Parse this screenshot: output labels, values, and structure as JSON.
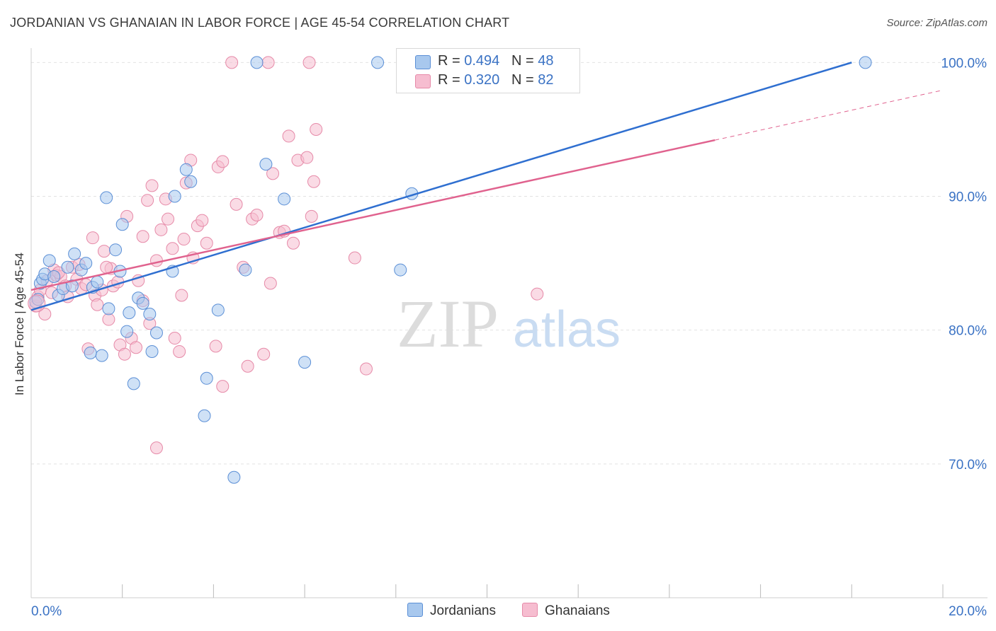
{
  "title": "JORDANIAN VS GHANAIAN IN LABOR FORCE | AGE 45-54 CORRELATION CHART",
  "source": "Source: ZipAtlas.com",
  "watermark": {
    "zip": "ZIP",
    "atlas": "atlas"
  },
  "legend": {
    "jordanians": {
      "r_label": "R = ",
      "r_value": "0.494",
      "n_label": "N = ",
      "n_value": "48"
    },
    "ghanaians": {
      "r_label": "R = ",
      "r_value": "0.320",
      "n_label": "N = ",
      "n_value": "82"
    }
  },
  "bottom_legend": {
    "jordanians": "Jordanians",
    "ghanaians": "Ghanaians"
  },
  "colors": {
    "jordanians_fill": "#a8c8ee",
    "jordanians_stroke": "#5b8fd6",
    "jordanians_line": "#2f6fd0",
    "ghanaians_fill": "#f6bdd0",
    "ghanaians_stroke": "#e68aa8",
    "ghanaians_line": "#e0628e",
    "axis_text": "#3a72c4",
    "grid": "#e2e2e2"
  },
  "chart_data": {
    "type": "scatter",
    "title": "JORDANIAN VS GHANAIAN IN LABOR FORCE | AGE 45-54 CORRELATION CHART",
    "xlabel": "",
    "ylabel": "In Labor Force | Age 45-54",
    "xlim": [
      0,
      20
    ],
    "ylim": [
      60,
      101.5
    ],
    "x_tick_labels": [
      {
        "value": 0,
        "label": "0.0%"
      },
      {
        "value": 20,
        "label": "20.0%"
      }
    ],
    "y_tick_labels": [
      {
        "value": 100,
        "label": "100.0%"
      },
      {
        "value": 90,
        "label": "90.0%"
      },
      {
        "value": 80,
        "label": "80.0%"
      },
      {
        "value": 70,
        "label": "70.0%"
      }
    ],
    "y_gridlines": [
      100,
      90,
      80,
      70
    ],
    "x_minor_ticks": [
      2,
      4,
      6,
      8,
      10,
      12,
      14,
      16,
      18,
      20
    ],
    "series": [
      {
        "name": "Jordanians",
        "r": 0.494,
        "n": 48,
        "trend": {
          "x0": 0,
          "y0": 81.5,
          "x1": 18,
          "y1": 100,
          "dash_to": 18
        },
        "points": [
          [
            0.1,
            82.1
          ],
          [
            0.15,
            82.3
          ],
          [
            0.2,
            83.5
          ],
          [
            0.25,
            83.8
          ],
          [
            0.3,
            84.2
          ],
          [
            0.4,
            85.2
          ],
          [
            0.5,
            84.0
          ],
          [
            0.6,
            82.6
          ],
          [
            0.7,
            83.1
          ],
          [
            0.8,
            84.7
          ],
          [
            0.9,
            83.3
          ],
          [
            0.95,
            85.7
          ],
          [
            1.1,
            84.5
          ],
          [
            1.2,
            85.0
          ],
          [
            1.35,
            83.2
          ],
          [
            1.45,
            83.6
          ],
          [
            1.55,
            78.1
          ],
          [
            1.65,
            89.9
          ],
          [
            1.7,
            81.6
          ],
          [
            1.85,
            86.0
          ],
          [
            1.95,
            84.4
          ],
          [
            2.0,
            87.9
          ],
          [
            2.1,
            79.9
          ],
          [
            2.15,
            81.3
          ],
          [
            2.25,
            76.0
          ],
          [
            2.35,
            82.4
          ],
          [
            2.45,
            82.0
          ],
          [
            2.6,
            81.2
          ],
          [
            2.65,
            78.4
          ],
          [
            2.75,
            79.8
          ],
          [
            3.1,
            84.4
          ],
          [
            3.15,
            90.0
          ],
          [
            3.4,
            92.0
          ],
          [
            3.5,
            91.1
          ],
          [
            3.85,
            76.4
          ],
          [
            3.8,
            73.6
          ],
          [
            4.1,
            81.5
          ],
          [
            4.45,
            69.0
          ],
          [
            4.7,
            84.5
          ],
          [
            4.95,
            100
          ],
          [
            5.15,
            92.4
          ],
          [
            5.55,
            89.8
          ],
          [
            6.0,
            77.6
          ],
          [
            7.6,
            100
          ],
          [
            8.1,
            84.5
          ],
          [
            8.35,
            90.2
          ],
          [
            18.3,
            100
          ],
          [
            1.3,
            78.3
          ]
        ]
      },
      {
        "name": "Ghanaians",
        "r": 0.32,
        "n": 82,
        "trend": {
          "x0": 0,
          "y0": 83.0,
          "x1": 15,
          "y1": 94.2,
          "dash_to": 20
        },
        "points": [
          [
            0.1,
            81.8
          ],
          [
            0.15,
            82.5
          ],
          [
            0.2,
            83.0
          ],
          [
            0.3,
            81.2
          ],
          [
            0.35,
            83.7
          ],
          [
            0.45,
            82.8
          ],
          [
            0.5,
            84.5
          ],
          [
            0.55,
            84.1
          ],
          [
            0.65,
            84.0
          ],
          [
            0.75,
            83.3
          ],
          [
            0.8,
            82.5
          ],
          [
            0.9,
            84.7
          ],
          [
            1.0,
            83.8
          ],
          [
            1.05,
            84.9
          ],
          [
            1.1,
            83.1
          ],
          [
            1.2,
            83.4
          ],
          [
            1.25,
            78.6
          ],
          [
            1.35,
            86.9
          ],
          [
            1.4,
            82.6
          ],
          [
            1.45,
            81.9
          ],
          [
            1.55,
            83.0
          ],
          [
            1.6,
            85.9
          ],
          [
            1.7,
            80.8
          ],
          [
            1.75,
            84.6
          ],
          [
            1.8,
            83.3
          ],
          [
            1.9,
            83.6
          ],
          [
            1.95,
            78.9
          ],
          [
            2.05,
            78.2
          ],
          [
            2.1,
            88.5
          ],
          [
            2.2,
            79.4
          ],
          [
            2.3,
            78.7
          ],
          [
            2.35,
            83.7
          ],
          [
            2.45,
            87.0
          ],
          [
            2.55,
            89.7
          ],
          [
            2.6,
            80.5
          ],
          [
            2.65,
            90.8
          ],
          [
            2.75,
            85.2
          ],
          [
            2.85,
            87.5
          ],
          [
            2.95,
            89.8
          ],
          [
            3.0,
            88.3
          ],
          [
            3.1,
            86.1
          ],
          [
            3.15,
            79.4
          ],
          [
            3.25,
            78.4
          ],
          [
            3.35,
            86.8
          ],
          [
            3.4,
            91.0
          ],
          [
            3.5,
            92.7
          ],
          [
            3.55,
            85.4
          ],
          [
            3.65,
            87.8
          ],
          [
            3.75,
            88.2
          ],
          [
            3.85,
            86.5
          ],
          [
            4.1,
            92.2
          ],
          [
            4.2,
            92.6
          ],
          [
            4.2,
            75.8
          ],
          [
            4.5,
            89.4
          ],
          [
            4.65,
            84.7
          ],
          [
            4.75,
            77.3
          ],
          [
            4.85,
            88.3
          ],
          [
            4.95,
            88.6
          ],
          [
            5.1,
            78.2
          ],
          [
            5.25,
            83.5
          ],
          [
            5.3,
            91.7
          ],
          [
            5.45,
            87.3
          ],
          [
            5.65,
            94.5
          ],
          [
            5.75,
            86.5
          ],
          [
            5.85,
            92.7
          ],
          [
            6.05,
            92.9
          ],
          [
            6.15,
            88.5
          ],
          [
            6.2,
            91.1
          ],
          [
            6.25,
            95.0
          ],
          [
            4.4,
            100
          ],
          [
            5.2,
            100
          ],
          [
            6.1,
            100
          ],
          [
            7.1,
            85.4
          ],
          [
            7.35,
            77.1
          ],
          [
            11.1,
            82.7
          ],
          [
            2.75,
            71.2
          ],
          [
            5.55,
            87.4
          ],
          [
            4.05,
            78.8
          ],
          [
            1.65,
            84.7
          ],
          [
            0.6,
            84.3
          ],
          [
            3.3,
            82.6
          ],
          [
            2.45,
            82.2
          ]
        ]
      }
    ]
  }
}
